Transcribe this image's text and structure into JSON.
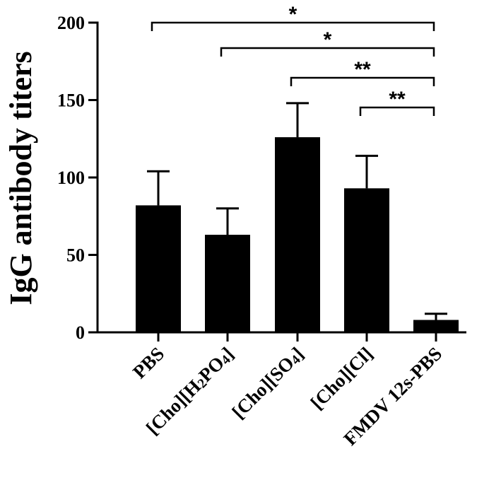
{
  "chart_data": {
    "type": "bar",
    "title": "",
    "xlabel": "",
    "ylabel": "IgG antibody titers",
    "ylim": [
      0,
      200
    ],
    "yticks": [
      0,
      50,
      100,
      150,
      200
    ],
    "categories": [
      {
        "parts": [
          {
            "t": "PBS"
          }
        ]
      },
      {
        "parts": [
          {
            "t": "[Cho][H"
          },
          {
            "t": "2",
            "sub": true
          },
          {
            "t": "PO"
          },
          {
            "t": "4",
            "sub": true
          },
          {
            "t": "]"
          }
        ]
      },
      {
        "parts": [
          {
            "t": "[Cho][SO"
          },
          {
            "t": "4",
            "sub": true
          },
          {
            "t": "]"
          }
        ]
      },
      {
        "parts": [
          {
            "t": "[Cho][Cl]"
          }
        ]
      },
      {
        "parts": [
          {
            "t": "FMDV 12s-PBS"
          }
        ]
      }
    ],
    "values": [
      82,
      63,
      126,
      93,
      8
    ],
    "errors": [
      22,
      17,
      22,
      21,
      4
    ],
    "bar_color": "#000000",
    "grid": false,
    "legend": null,
    "significance": [
      {
        "from": 0,
        "to": 4,
        "label": "*"
      },
      {
        "from": 1,
        "to": 4,
        "label": "*"
      },
      {
        "from": 2,
        "to": 4,
        "label": "**"
      },
      {
        "from": 3,
        "to": 4,
        "label": "**"
      }
    ]
  }
}
